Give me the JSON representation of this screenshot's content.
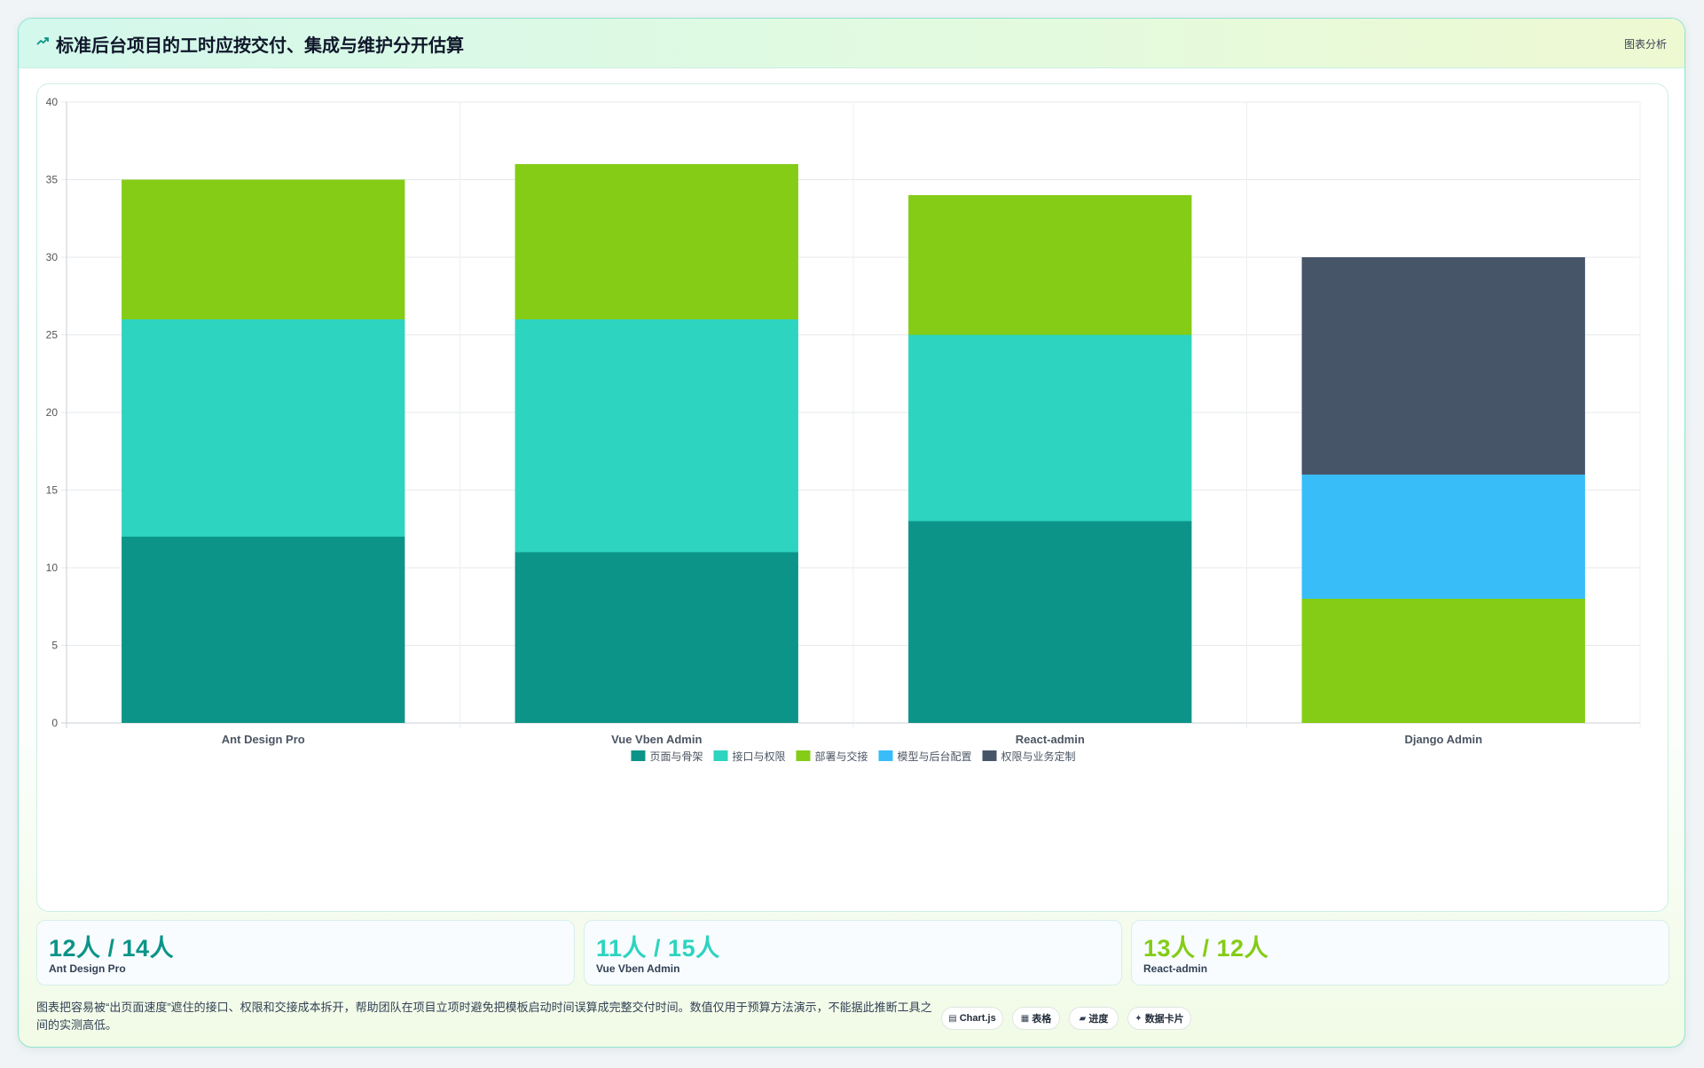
{
  "header": {
    "title": "标准后台项目的工时应按交付、集成与维护分开估算",
    "tag": "图表分析",
    "icon": "trend-arrow-icon"
  },
  "chart_data": {
    "type": "bar",
    "stacked": true,
    "categories": [
      "Ant Design Pro",
      "Vue Vben Admin",
      "React-admin",
      "Django Admin"
    ],
    "ylim": [
      0,
      40
    ],
    "yticks": [
      0,
      5,
      10,
      15,
      20,
      25,
      30,
      35,
      40
    ],
    "grid": true,
    "legend_position": "bottom",
    "series": [
      {
        "name": "页面与骨架",
        "color": "#0d9488",
        "values": [
          12,
          11,
          13,
          0
        ]
      },
      {
        "name": "接口与权限",
        "color": "#2dd4bf",
        "values": [
          14,
          15,
          12,
          0
        ]
      },
      {
        "name": "部署与交接",
        "color": "#84cc16",
        "values": [
          9,
          10,
          9,
          8
        ]
      },
      {
        "name": "模型与后台配置",
        "color": "#38bdf8",
        "values": [
          0,
          0,
          0,
          8
        ]
      },
      {
        "name": "权限与业务定制",
        "color": "#475569",
        "values": [
          0,
          0,
          0,
          14
        ]
      }
    ]
  },
  "stats": [
    {
      "value": "12人 / 14人",
      "label": "Ant Design Pro",
      "color": "#0d9488"
    },
    {
      "value": "11人 / 15人",
      "label": "Vue Vben Admin",
      "color": "#2dd4bf"
    },
    {
      "value": "13人 / 12人",
      "label": "React-admin",
      "color": "#84cc16"
    }
  ],
  "footnote": "图表把容易被“出页面速度”遮住的接口、权限和交接成本拆开，帮助团队在项目立项时避免把模板启动时间误算成完整交付时间。数值仅用于预算方法演示，不能据此推断工具之间的实测高低。",
  "chips": [
    {
      "icon": "chart-icon",
      "glyph": "▤",
      "label": "Chart.js"
    },
    {
      "icon": "table-icon",
      "glyph": "▦",
      "label": "表格"
    },
    {
      "icon": "progress-icon",
      "glyph": "▰",
      "label": "进度"
    },
    {
      "icon": "sparkle-icon",
      "glyph": "✦",
      "label": "数据卡片"
    }
  ]
}
